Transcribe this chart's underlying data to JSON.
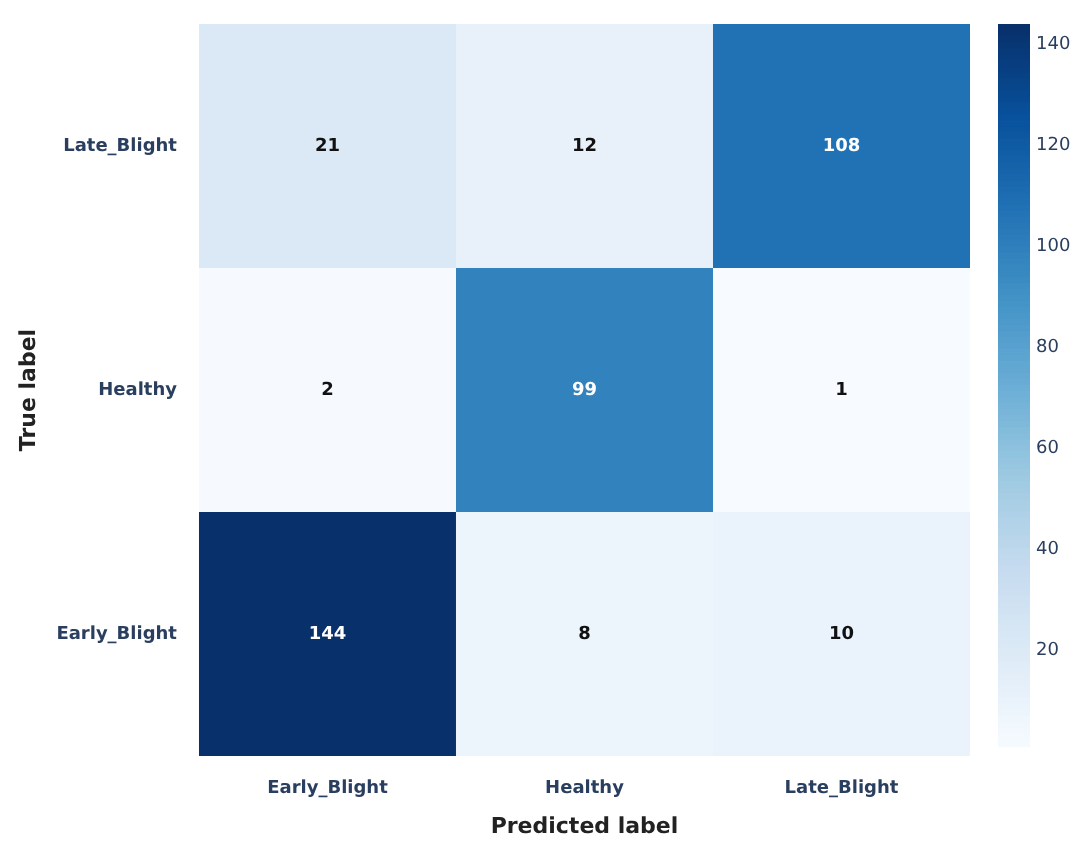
{
  "chart_data": {
    "type": "heatmap",
    "xlabel": "Predicted label",
    "ylabel": "True label",
    "categories": [
      "Early_Blight",
      "Healthy",
      "Late_Blight"
    ],
    "y_categories": [
      "Late_Blight",
      "Healthy",
      "Early_Blight"
    ],
    "cells": [
      [
        21,
        12,
        108
      ],
      [
        2,
        99,
        1
      ],
      [
        144,
        8,
        10
      ]
    ],
    "clim": [
      1,
      144
    ],
    "cticks": [
      20,
      40,
      60,
      80,
      100,
      120,
      140
    ],
    "data_labels": true
  }
}
